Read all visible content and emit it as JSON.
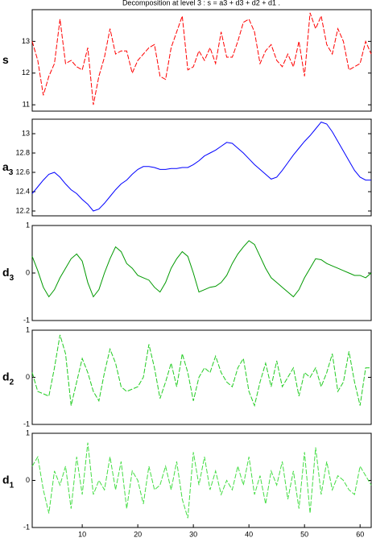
{
  "chart_data": [
    {
      "type": "line",
      "title": "Decomposition at level 3 : s = a3 + d3 + d2 + d1 .",
      "ylabel": "s",
      "color": "#ff0000",
      "linestyle": "dashed",
      "xlim": [
        1,
        62
      ],
      "ylim": [
        10.8,
        14
      ],
      "yticks": [
        11,
        12,
        13
      ],
      "x": [
        1,
        2,
        3,
        4,
        5,
        6,
        7,
        8,
        9,
        10,
        11,
        12,
        13,
        14,
        15,
        16,
        17,
        18,
        19,
        20,
        21,
        22,
        23,
        24,
        25,
        26,
        27,
        28,
        29,
        30,
        31,
        32,
        33,
        34,
        35,
        36,
        37,
        38,
        39,
        40,
        41,
        42,
        43,
        44,
        45,
        46,
        47,
        48,
        49,
        50,
        51,
        52,
        53,
        54,
        55,
        56,
        57,
        58,
        59,
        60,
        61,
        62
      ],
      "values": [
        13.0,
        12.4,
        11.3,
        11.9,
        12.3,
        13.7,
        12.3,
        12.4,
        12.2,
        12.1,
        12.8,
        11.0,
        11.9,
        12.5,
        13.4,
        12.6,
        12.7,
        12.7,
        12.0,
        12.4,
        12.6,
        12.8,
        12.9,
        11.9,
        11.8,
        12.8,
        13.3,
        13.8,
        12.1,
        12.2,
        12.7,
        12.4,
        12.8,
        12.3,
        13.3,
        12.5,
        12.5,
        13.0,
        13.6,
        13.7,
        13.3,
        12.3,
        12.7,
        12.9,
        12.4,
        12.2,
        12.6,
        12.2,
        13.0,
        11.9,
        13.9,
        13.4,
        13.8,
        12.9,
        12.6,
        13.4,
        13.0,
        12.1,
        12.2,
        12.3,
        13.0,
        12.6
      ]
    },
    {
      "type": "line",
      "ylabel": "a",
      "ylabel_sub": "3",
      "color": "#0000ff",
      "linestyle": "solid",
      "xlim": [
        1,
        62
      ],
      "ylim": [
        12.15,
        13.15
      ],
      "yticks": [
        12.2,
        12.4,
        12.6,
        12.8,
        13
      ],
      "x": [
        1,
        2,
        3,
        4,
        5,
        6,
        7,
        8,
        9,
        10,
        11,
        12,
        13,
        14,
        15,
        16,
        17,
        18,
        19,
        20,
        21,
        22,
        23,
        24,
        25,
        26,
        27,
        28,
        29,
        30,
        31,
        32,
        33,
        34,
        35,
        36,
        37,
        38,
        39,
        40,
        41,
        42,
        43,
        44,
        45,
        46,
        47,
        48,
        49,
        50,
        51,
        52,
        53,
        54,
        55,
        56,
        57,
        58,
        59,
        60,
        61,
        62
      ],
      "values": [
        12.38,
        12.45,
        12.52,
        12.58,
        12.6,
        12.55,
        12.48,
        12.42,
        12.38,
        12.32,
        12.27,
        12.2,
        12.22,
        12.28,
        12.35,
        12.42,
        12.48,
        12.52,
        12.58,
        12.63,
        12.66,
        12.66,
        12.65,
        12.63,
        12.63,
        12.64,
        12.64,
        12.65,
        12.65,
        12.68,
        12.72,
        12.77,
        12.8,
        12.83,
        12.87,
        12.91,
        12.9,
        12.85,
        12.8,
        12.74,
        12.68,
        12.63,
        12.58,
        12.53,
        12.55,
        12.62,
        12.7,
        12.78,
        12.85,
        12.92,
        12.98,
        13.05,
        13.12,
        13.1,
        13.02,
        12.92,
        12.82,
        12.72,
        12.62,
        12.55,
        12.52,
        12.52
      ]
    },
    {
      "type": "line",
      "ylabel": "d",
      "ylabel_sub": "3",
      "color": "#009900",
      "linestyle": "solid",
      "xlim": [
        1,
        62
      ],
      "ylim": [
        -1,
        1
      ],
      "yticks": [
        -1,
        0,
        1
      ],
      "x": [
        1,
        2,
        3,
        4,
        5,
        6,
        7,
        8,
        9,
        10,
        11,
        12,
        13,
        14,
        15,
        16,
        17,
        18,
        19,
        20,
        21,
        22,
        23,
        24,
        25,
        26,
        27,
        28,
        29,
        30,
        31,
        32,
        33,
        34,
        35,
        36,
        37,
        38,
        39,
        40,
        41,
        42,
        43,
        44,
        45,
        46,
        47,
        48,
        49,
        50,
        51,
        52,
        53,
        54,
        55,
        56,
        57,
        58,
        59,
        60,
        61,
        62
      ],
      "values": [
        0.35,
        0.05,
        -0.3,
        -0.5,
        -0.35,
        -0.1,
        0.1,
        0.3,
        0.4,
        0.25,
        -0.2,
        -0.5,
        -0.35,
        0,
        0.3,
        0.55,
        0.45,
        0.2,
        0.1,
        -0.05,
        -0.1,
        -0.15,
        -0.3,
        -0.4,
        -0.2,
        0.1,
        0.3,
        0.45,
        0.35,
        0,
        -0.4,
        -0.35,
        -0.3,
        -0.28,
        -0.2,
        -0.05,
        0.2,
        0.4,
        0.55,
        0.68,
        0.6,
        0.35,
        0.1,
        -0.1,
        -0.2,
        -0.3,
        -0.4,
        -0.5,
        -0.35,
        -0.1,
        0.1,
        0.3,
        0.28,
        0.2,
        0.15,
        0.1,
        0.05,
        0,
        -0.05,
        -0.05,
        -0.1,
        0
      ]
    },
    {
      "type": "line",
      "ylabel": "d",
      "ylabel_sub": "2",
      "color": "#22cc22",
      "linestyle": "dashed",
      "xlim": [
        1,
        62
      ],
      "ylim": [
        -1,
        1
      ],
      "yticks": [
        -1,
        0,
        1
      ],
      "x": [
        1,
        2,
        3,
        4,
        5,
        6,
        7,
        8,
        9,
        10,
        11,
        12,
        13,
        14,
        15,
        16,
        17,
        18,
        19,
        20,
        21,
        22,
        23,
        24,
        25,
        26,
        27,
        28,
        29,
        30,
        31,
        32,
        33,
        34,
        35,
        36,
        37,
        38,
        39,
        40,
        41,
        42,
        43,
        44,
        45,
        46,
        47,
        48,
        49,
        50,
        51,
        52,
        53,
        54,
        55,
        56,
        57,
        58,
        59,
        60,
        61,
        62
      ],
      "values": [
        0.1,
        -0.3,
        -0.35,
        -0.4,
        0.2,
        0.9,
        0.5,
        -0.6,
        -0.1,
        0.4,
        0.1,
        -0.3,
        -0.5,
        0.1,
        0.6,
        0.3,
        -0.2,
        -0.3,
        -0.25,
        -0.2,
        0,
        0.7,
        0.2,
        -0.45,
        -0.1,
        0.3,
        -0.2,
        0.5,
        0.1,
        -0.5,
        0,
        0.2,
        0.1,
        0.45,
        0.1,
        -0.1,
        -0.2,
        0.2,
        0.4,
        -0.3,
        -0.6,
        -0.1,
        0.3,
        -0.2,
        0.35,
        -0.2,
        0,
        0.2,
        -0.4,
        0.1,
        0,
        0.2,
        -0.2,
        0.1,
        0.5,
        -0.3,
        -0.1,
        0.55,
        -0.1,
        -0.6,
        0.2,
        0.2
      ]
    },
    {
      "type": "line",
      "ylabel": "d",
      "ylabel_sub": "1",
      "color": "#44dd44",
      "linestyle": "dashed",
      "xlim": [
        1,
        62
      ],
      "ylim": [
        -1,
        1
      ],
      "yticks": [
        -1,
        0,
        1
      ],
      "xticks": [
        10,
        20,
        30,
        40,
        50,
        60
      ],
      "x": [
        1,
        2,
        3,
        4,
        5,
        6,
        7,
        8,
        9,
        10,
        11,
        12,
        13,
        14,
        15,
        16,
        17,
        18,
        19,
        20,
        21,
        22,
        23,
        24,
        25,
        26,
        27,
        28,
        29,
        30,
        31,
        32,
        33,
        34,
        35,
        36,
        37,
        38,
        39,
        40,
        41,
        42,
        43,
        44,
        45,
        46,
        47,
        48,
        49,
        50,
        51,
        52,
        53,
        54,
        55,
        56,
        57,
        58,
        59,
        60,
        61,
        62
      ],
      "values": [
        0.3,
        0.5,
        -0.2,
        -0.7,
        0.2,
        -0.1,
        0.3,
        -0.6,
        0.5,
        -0.3,
        0.8,
        -0.3,
        0,
        -0.2,
        0.5,
        -0.2,
        0.4,
        -0.6,
        0.2,
        0,
        -0.5,
        0.3,
        -0.2,
        -0.1,
        0.3,
        -0.2,
        0.4,
        -0.4,
        -0.8,
        0.6,
        -0.1,
        0.5,
        -0.2,
        0.2,
        -0.3,
        0,
        -0.2,
        0.3,
        -0.1,
        0.5,
        -0.3,
        0.1,
        -0.5,
        0.2,
        -0.1,
        0.4,
        -0.4,
        0.2,
        -0.6,
        0.6,
        -0.7,
        0.7,
        -0.3,
        0.4,
        -0.2,
        0.1,
        0,
        -0.2,
        -0.3,
        0.3,
        0.1,
        -0.1
      ]
    }
  ]
}
